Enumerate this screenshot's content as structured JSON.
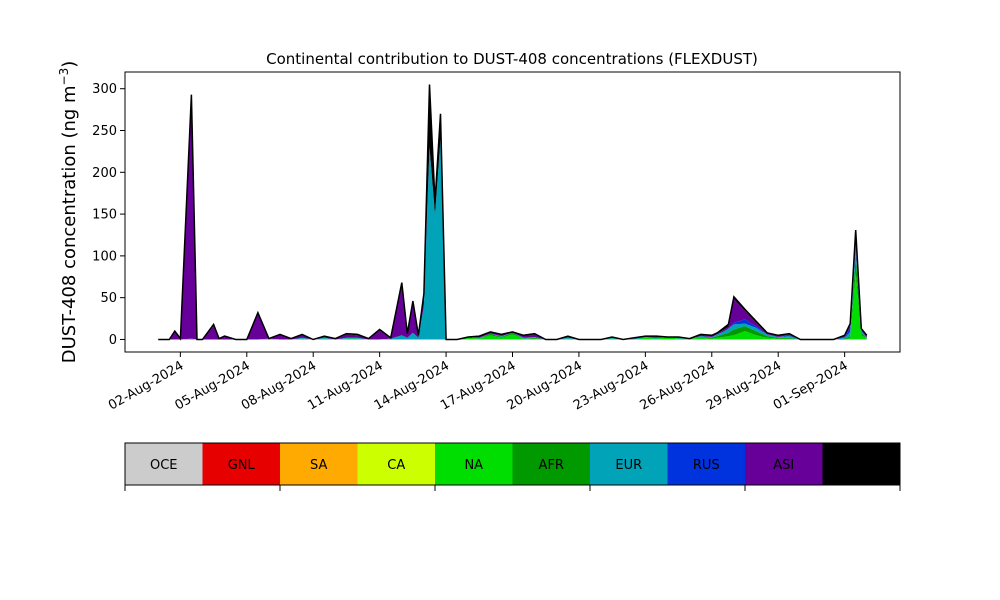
{
  "chart_data": {
    "type": "area",
    "title": "Continental contribution to DUST-408 concentrations (FLEXDUST)",
    "ylabel": "DUST-408 concentration (ng m",
    "ylabel_sup": "−3",
    "ylabel_close": ")",
    "xlabel": "",
    "ylim": [
      -15,
      320
    ],
    "yticks": [
      0,
      50,
      100,
      150,
      200,
      250,
      300
    ],
    "xlim": [
      "2024-07-30T12:00",
      "2024-09-03T12:00"
    ],
    "xticks": [
      "02-Aug-2024",
      "05-Aug-2024",
      "08-Aug-2024",
      "11-Aug-2024",
      "14-Aug-2024",
      "17-Aug-2024",
      "20-Aug-2024",
      "23-Aug-2024",
      "26-Aug-2024",
      "29-Aug-2024",
      "01-Sep-2024"
    ],
    "xtick_dates": [
      "2024-08-02",
      "2024-08-05",
      "2024-08-08",
      "2024-08-11",
      "2024-08-14",
      "2024-08-17",
      "2024-08-20",
      "2024-08-23",
      "2024-08-26",
      "2024-08-29",
      "2024-09-01"
    ],
    "grid": false,
    "legend_position": "bottom colorbar",
    "legend": [
      {
        "label": "OCE",
        "color": "#cccccc"
      },
      {
        "label": "GNL",
        "color": "#e60000"
      },
      {
        "label": "SA",
        "color": "#ffaa00"
      },
      {
        "label": "CA",
        "color": "#ccff00"
      },
      {
        "label": "NA",
        "color": "#00dd00"
      },
      {
        "label": "AFR",
        "color": "#009900"
      },
      {
        "label": "EUR",
        "color": "#00a3b8"
      },
      {
        "label": "RUS",
        "color": "#0033dd"
      },
      {
        "label": "ASI",
        "color": "#660099"
      },
      {
        "label": "AUS",
        "color": "#000000"
      }
    ],
    "x": [
      "2024-08-01T00:00",
      "2024-08-01T12:00",
      "2024-08-01T18:00",
      "2024-08-02T00:00",
      "2024-08-02T12:00",
      "2024-08-02T18:00",
      "2024-08-03T00:00",
      "2024-08-03T12:00",
      "2024-08-03T18:00",
      "2024-08-04T00:00",
      "2024-08-04T12:00",
      "2024-08-05T00:00",
      "2024-08-05T12:00",
      "2024-08-06T00:00",
      "2024-08-06T12:00",
      "2024-08-07T00:00",
      "2024-08-07T12:00",
      "2024-08-08T00:00",
      "2024-08-08T12:00",
      "2024-08-09T00:00",
      "2024-08-09T12:00",
      "2024-08-10T00:00",
      "2024-08-10T12:00",
      "2024-08-11T00:00",
      "2024-08-11T12:00",
      "2024-08-12T00:00",
      "2024-08-12T06:00",
      "2024-08-12T12:00",
      "2024-08-12T18:00",
      "2024-08-13T00:00",
      "2024-08-13T06:00",
      "2024-08-13T12:00",
      "2024-08-13T18:00",
      "2024-08-14T00:00",
      "2024-08-14T12:00",
      "2024-08-15T00:00",
      "2024-08-15T12:00",
      "2024-08-16T00:00",
      "2024-08-16T12:00",
      "2024-08-17T00:00",
      "2024-08-17T12:00",
      "2024-08-18T00:00",
      "2024-08-18T12:00",
      "2024-08-19T00:00",
      "2024-08-19T12:00",
      "2024-08-20T00:00",
      "2024-08-20T12:00",
      "2024-08-21T00:00",
      "2024-08-21T12:00",
      "2024-08-22T00:00",
      "2024-08-22T12:00",
      "2024-08-23T00:00",
      "2024-08-23T12:00",
      "2024-08-24T00:00",
      "2024-08-24T12:00",
      "2024-08-25T00:00",
      "2024-08-25T12:00",
      "2024-08-26T00:00",
      "2024-08-26T06:00",
      "2024-08-26T12:00",
      "2024-08-26T18:00",
      "2024-08-27T00:00",
      "2024-08-27T12:00",
      "2024-08-28T00:00",
      "2024-08-28T12:00",
      "2024-08-29T00:00",
      "2024-08-29T12:00",
      "2024-08-30T00:00",
      "2024-08-30T12:00",
      "2024-08-31T00:00",
      "2024-08-31T12:00",
      "2024-09-01T00:00",
      "2024-09-01T06:00",
      "2024-09-01T12:00",
      "2024-09-01T18:00",
      "2024-09-02T00:00"
    ],
    "series": [
      {
        "name": "NA",
        "values": [
          0,
          0,
          0,
          0,
          0,
          0,
          0,
          0,
          0,
          0,
          0,
          0,
          0,
          1,
          0,
          0,
          1,
          0,
          1,
          0,
          1,
          1,
          0,
          0,
          0,
          0,
          0,
          0,
          0,
          0,
          0,
          0,
          0,
          0,
          0,
          2,
          1,
          5,
          2,
          6,
          1,
          1,
          0,
          0,
          1,
          0,
          0,
          0,
          1,
          0,
          0,
          2,
          1,
          3,
          1,
          1,
          2,
          1,
          2,
          3,
          4,
          5,
          10,
          5,
          2,
          1,
          1,
          0,
          0,
          0,
          0,
          0,
          2,
          80,
          5,
          1
        ]
      },
      {
        "name": "AFR",
        "values": [
          0,
          0,
          0,
          0,
          0,
          0,
          0,
          0,
          0,
          0,
          0,
          0,
          0,
          0,
          0,
          0,
          0,
          0,
          0,
          0,
          0,
          0,
          0,
          0,
          0,
          0,
          0,
          0,
          0,
          0,
          0,
          0,
          0,
          0,
          0,
          1,
          0,
          2,
          1,
          2,
          0,
          1,
          0,
          0,
          0,
          0,
          0,
          0,
          0,
          0,
          0,
          0,
          0,
          0,
          0,
          0,
          1,
          1,
          2,
          3,
          4,
          7,
          6,
          5,
          2,
          1,
          1,
          0,
          0,
          0,
          0,
          1,
          2,
          20,
          3,
          0
        ]
      },
      {
        "name": "EUR",
        "values": [
          0,
          0,
          0,
          0,
          1,
          0,
          0,
          0,
          0,
          0,
          0,
          0,
          0,
          0,
          0,
          0,
          1,
          0,
          1,
          0,
          1,
          1,
          0,
          0,
          1,
          5,
          2,
          8,
          2,
          40,
          230,
          150,
          240,
          0,
          0,
          0,
          1,
          0,
          1,
          0,
          1,
          1,
          0,
          0,
          1,
          0,
          0,
          0,
          1,
          0,
          1,
          1,
          1,
          0,
          1,
          0,
          1,
          1,
          2,
          3,
          5,
          6,
          3,
          4,
          2,
          1,
          2,
          0,
          0,
          0,
          0,
          1,
          5,
          10,
          2,
          1
        ]
      },
      {
        "name": "RUS",
        "values": [
          0,
          0,
          0,
          0,
          0,
          0,
          0,
          0,
          0,
          0,
          0,
          0,
          0,
          0,
          0,
          0,
          0,
          0,
          0,
          0,
          0,
          0,
          0,
          0,
          0,
          0,
          0,
          0,
          0,
          0,
          0,
          0,
          0,
          0,
          0,
          0,
          0,
          0,
          0,
          0,
          0,
          0,
          0,
          0,
          0,
          0,
          0,
          0,
          0,
          0,
          0,
          0,
          0,
          0,
          0,
          0,
          0,
          0,
          0,
          0,
          0,
          2,
          5,
          2,
          0,
          0,
          1,
          0,
          0,
          0,
          0,
          1,
          5,
          3,
          1,
          0
        ]
      },
      {
        "name": "ASI",
        "values": [
          0,
          0,
          9,
          1,
          286,
          0,
          0,
          16,
          1,
          3,
          0,
          0,
          31,
          0,
          5,
          1,
          3,
          0,
          1,
          1,
          4,
          3,
          1,
          11,
          0,
          60,
          5,
          35,
          3,
          12,
          0,
          0,
          0,
          0,
          0,
          0,
          1,
          2,
          1,
          1,
          2,
          3,
          0,
          0,
          1,
          0,
          0,
          0,
          1,
          0,
          1,
          1,
          1,
          0,
          1,
          0,
          1,
          1,
          1,
          2,
          2,
          28,
          10,
          4,
          1,
          1,
          1,
          0,
          0,
          0,
          0,
          1,
          3,
          10,
          1,
          2
        ]
      },
      {
        "name": "AUS",
        "values": [
          0,
          0,
          1,
          0,
          6,
          0,
          0,
          2,
          0,
          1,
          0,
          0,
          1,
          0,
          1,
          0,
          1,
          0,
          1,
          0,
          1,
          1,
          0,
          1,
          1,
          3,
          0,
          3,
          0,
          3,
          75,
          15,
          30,
          0,
          0,
          0,
          1,
          0,
          1,
          0,
          1,
          1,
          0,
          0,
          1,
          0,
          0,
          0,
          0,
          0,
          0,
          0,
          1,
          0,
          0,
          0,
          1,
          1,
          1,
          2,
          3,
          3,
          2,
          2,
          1,
          1,
          1,
          0,
          0,
          0,
          0,
          1,
          2,
          8,
          1,
          1
        ]
      }
    ]
  }
}
